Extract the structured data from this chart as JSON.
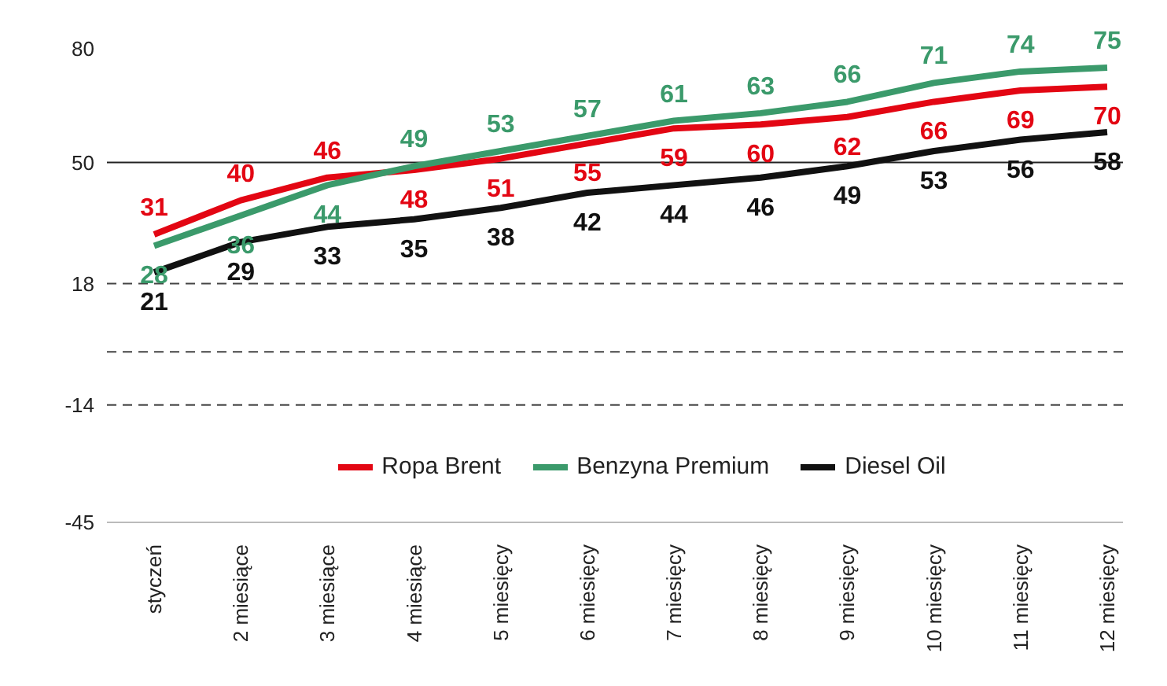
{
  "chart_data": {
    "type": "line",
    "categories": [
      "styczeń",
      "2 miesiące",
      "3 miesiące",
      "4 miesiące",
      "5 miesięcy",
      "6 miesięcy",
      "7 miesięcy",
      "8 miesięcy",
      "9 miesięcy",
      "10 miesięcy",
      "11 miesięcy",
      "12 miesięcy"
    ],
    "series": [
      {
        "name": "Ropa Brent",
        "color": "#e30613",
        "values": [
          31,
          40,
          46,
          48,
          51,
          55,
          59,
          60,
          62,
          66,
          69,
          70
        ]
      },
      {
        "name": "Benzyna Premium",
        "color": "#3b9a6b",
        "values": [
          28,
          36,
          44,
          49,
          53,
          57,
          61,
          63,
          66,
          71,
          74,
          75
        ]
      },
      {
        "name": "Diesel Oil",
        "color": "#111111",
        "values": [
          21,
          29,
          33,
          35,
          38,
          42,
          44,
          46,
          49,
          53,
          56,
          58
        ]
      }
    ],
    "ylim": [
      -45,
      80
    ],
    "yticks": [
      -45,
      -14,
      18,
      50,
      80
    ],
    "data_labels": true,
    "legend": "bottom",
    "marker": "none",
    "line_style": "solid",
    "ref_lines": [
      {
        "axis": "y",
        "value": 50,
        "line_style": "solid",
        "color": "#222222"
      },
      {
        "axis": "y",
        "value": 18,
        "line_style": "dashed",
        "color": "#444444"
      },
      {
        "axis": "y",
        "value": 0,
        "line_style": "dashed",
        "color": "#444444"
      },
      {
        "axis": "y",
        "value": -14,
        "line_style": "dashed",
        "color": "#444444"
      }
    ]
  }
}
